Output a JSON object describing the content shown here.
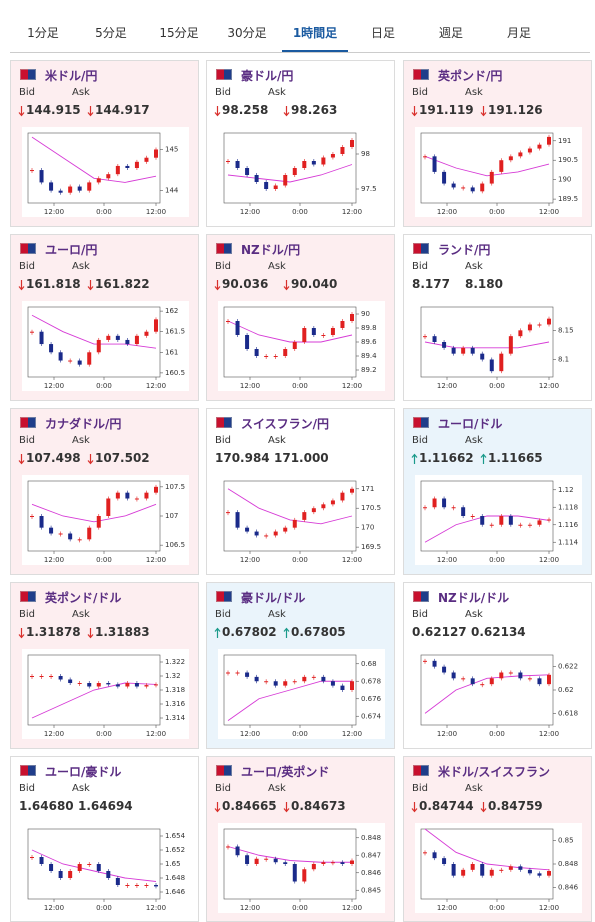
{
  "tabs": {
    "items": [
      "1分足",
      "5分足",
      "15分足",
      "30分足",
      "1時間足",
      "日足",
      "週足",
      "月足"
    ],
    "active": 4
  },
  "cards": [
    {
      "title": "米ドル/円",
      "bid_label": "Bid",
      "ask_label": "Ask",
      "bid": "144.915",
      "ask": "144.917",
      "direction": "down",
      "highlight": "pink",
      "chart": {
        "ylim": [
          143.7,
          145.4
        ],
        "yticks": [
          144,
          145
        ],
        "xticks": [
          "12:00",
          "0:00",
          "12:00"
        ],
        "closes": [
          144.5,
          144.2,
          144.0,
          143.95,
          144.1,
          144.0,
          144.2,
          144.3,
          144.4,
          144.6,
          144.55,
          144.7,
          144.8,
          145.0
        ],
        "ma": [
          145.3,
          144.8,
          144.3,
          144.2,
          144.35
        ]
      }
    },
    {
      "title": "豪ドル/円",
      "bid_label": "Bid",
      "ask_label": "Ask",
      "bid": "98.258",
      "ask": "98.263",
      "direction": "down",
      "highlight": "none",
      "chart": {
        "ylim": [
          97.3,
          98.3
        ],
        "yticks": [
          97.5,
          98
        ],
        "xticks": [
          "12:00",
          "0:00",
          "12:00"
        ],
        "closes": [
          97.9,
          97.8,
          97.7,
          97.6,
          97.5,
          97.55,
          97.7,
          97.8,
          97.9,
          97.85,
          97.95,
          98.0,
          98.1,
          98.2
        ],
        "ma": [
          97.7,
          97.65,
          97.6,
          97.7,
          97.85
        ]
      }
    },
    {
      "title": "英ポンド/円",
      "bid_label": "Bid",
      "ask_label": "Ask",
      "bid": "191.119",
      "ask": "191.126",
      "direction": "down",
      "highlight": "pink",
      "chart": {
        "ylim": [
          189.4,
          191.2
        ],
        "yticks": [
          189.5,
          190,
          190.5,
          191
        ],
        "xticks": [
          "12:00",
          "0:00",
          "12:00"
        ],
        "closes": [
          190.6,
          190.2,
          189.9,
          189.8,
          189.8,
          189.7,
          189.9,
          190.2,
          190.5,
          190.6,
          190.7,
          190.8,
          190.9,
          191.1
        ],
        "ma": [
          190.6,
          190.3,
          190.1,
          190.2,
          190.4
        ]
      }
    },
    {
      "title": "ユーロ/円",
      "bid_label": "Bid",
      "ask_label": "Ask",
      "bid": "161.818",
      "ask": "161.822",
      "direction": "down",
      "highlight": "pink",
      "chart": {
        "ylim": [
          160.4,
          162.1
        ],
        "yticks": [
          160.5,
          161,
          161.5,
          162
        ],
        "xticks": [
          "12:00",
          "0:00",
          "12:00"
        ],
        "closes": [
          161.5,
          161.2,
          161.0,
          160.8,
          160.8,
          160.7,
          161.0,
          161.3,
          161.4,
          161.3,
          161.2,
          161.4,
          161.5,
          161.8
        ],
        "ma": [
          161.9,
          161.5,
          161.2,
          161.2,
          161.1
        ]
      }
    },
    {
      "title": "NZドル/円",
      "bid_label": "Bid",
      "ask_label": "Ask",
      "bid": "90.036",
      "ask": "90.040",
      "direction": "down",
      "highlight": "pink",
      "chart": {
        "ylim": [
          89.1,
          90.1
        ],
        "yticks": [
          89.2,
          89.4,
          89.6,
          89.8,
          90
        ],
        "xticks": [
          "12:00",
          "0:00",
          "12:00"
        ],
        "closes": [
          89.9,
          89.7,
          89.5,
          89.4,
          89.4,
          89.4,
          89.5,
          89.6,
          89.8,
          89.7,
          89.7,
          89.8,
          89.9,
          90.0
        ],
        "ma": [
          89.9,
          89.7,
          89.6,
          89.6,
          89.7
        ]
      }
    },
    {
      "title": "ランド/円",
      "bid_label": "Bid",
      "ask_label": "Ask",
      "bid": "8.177",
      "ask": "8.180",
      "direction": "none",
      "highlight": "none",
      "chart": {
        "ylim": [
          8.07,
          8.19
        ],
        "yticks": [
          8.1,
          8.15
        ],
        "xticks": [
          "12:00",
          "0:00",
          "12:00"
        ],
        "closes": [
          8.14,
          8.13,
          8.12,
          8.11,
          8.12,
          8.11,
          8.1,
          8.08,
          8.11,
          8.14,
          8.15,
          8.16,
          8.16,
          8.17
        ],
        "ma": [
          8.13,
          8.12,
          8.12,
          8.12,
          8.13
        ]
      }
    },
    {
      "title": "カナダドル/円",
      "bid_label": "Bid",
      "ask_label": "Ask",
      "bid": "107.498",
      "ask": "107.502",
      "direction": "down",
      "highlight": "pink",
      "chart": {
        "ylim": [
          106.4,
          107.6
        ],
        "yticks": [
          106.5,
          107,
          107.5
        ],
        "xticks": [
          "12:00",
          "0:00",
          "12:00"
        ],
        "closes": [
          107.0,
          106.8,
          106.7,
          106.7,
          106.6,
          106.6,
          106.8,
          107.0,
          107.3,
          107.4,
          107.3,
          107.3,
          107.4,
          107.5
        ],
        "ma": [
          107.2,
          107.0,
          106.9,
          107.0,
          107.2
        ]
      }
    },
    {
      "title": "スイスフラン/円",
      "bid_label": "Bid",
      "ask_label": "Ask",
      "bid": "170.984",
      "ask": "171.000",
      "direction": "none",
      "highlight": "none",
      "chart": {
        "ylim": [
          169.4,
          171.2
        ],
        "yticks": [
          169.5,
          170,
          170.5,
          171
        ],
        "xticks": [
          "12:00",
          "0:00",
          "12:00"
        ],
        "closes": [
          170.4,
          170.0,
          169.9,
          169.8,
          169.8,
          169.9,
          170.0,
          170.2,
          170.4,
          170.5,
          170.6,
          170.7,
          170.9,
          171.0
        ],
        "ma": [
          171.0,
          170.5,
          170.2,
          170.1,
          170.3
        ]
      }
    },
    {
      "title": "ユーロ/ドル",
      "bid_label": "Bid",
      "ask_label": "Ask",
      "bid": "1.11662",
      "ask": "1.11665",
      "direction": "up",
      "highlight": "blue",
      "chart": {
        "ylim": [
          1.113,
          1.121
        ],
        "yticks": [
          1.114,
          1.116,
          1.118,
          1.12
        ],
        "xticks": [
          "12:00",
          "0:00",
          "12:00"
        ],
        "closes": [
          1.118,
          1.119,
          1.118,
          1.118,
          1.117,
          1.117,
          1.116,
          1.116,
          1.117,
          1.116,
          1.116,
          1.116,
          1.1165,
          1.1166
        ],
        "ma": [
          1.114,
          1.116,
          1.117,
          1.117,
          1.1165
        ]
      }
    },
    {
      "title": "英ポンド/ドル",
      "bid_label": "Bid",
      "ask_label": "Ask",
      "bid": "1.31878",
      "ask": "1.31883",
      "direction": "down",
      "highlight": "pink",
      "chart": {
        "ylim": [
          1.313,
          1.323
        ],
        "yticks": [
          1.314,
          1.316,
          1.318,
          1.32,
          1.322
        ],
        "xticks": [
          "12:00",
          "0:00",
          "12:00"
        ],
        "closes": [
          1.32,
          1.32,
          1.32,
          1.3195,
          1.319,
          1.319,
          1.3185,
          1.319,
          1.3188,
          1.3185,
          1.319,
          1.3185,
          1.3187,
          1.3188
        ],
        "ma": [
          1.314,
          1.316,
          1.318,
          1.319,
          1.3188
        ]
      }
    },
    {
      "title": "豪ドル/ドル",
      "bid_label": "Bid",
      "ask_label": "Ask",
      "bid": "0.67802",
      "ask": "0.67805",
      "direction": "up",
      "highlight": "blue",
      "chart": {
        "ylim": [
          0.673,
          0.681
        ],
        "yticks": [
          0.674,
          0.676,
          0.678,
          0.68
        ],
        "xticks": [
          "12:00",
          "0:00",
          "12:00"
        ],
        "closes": [
          0.679,
          0.679,
          0.6785,
          0.678,
          0.678,
          0.6775,
          0.678,
          0.678,
          0.6785,
          0.6785,
          0.678,
          0.6775,
          0.677,
          0.678
        ],
        "ma": [
          0.6735,
          0.676,
          0.677,
          0.678,
          0.678
        ]
      }
    },
    {
      "title": "NZドル/ドル",
      "bid_label": "Bid",
      "ask_label": "Ask",
      "bid": "0.62127",
      "ask": "0.62134",
      "direction": "none",
      "highlight": "none",
      "chart": {
        "ylim": [
          0.617,
          0.623
        ],
        "yticks": [
          0.618,
          0.62,
          0.622
        ],
        "xticks": [
          "12:00",
          "0:00",
          "12:00"
        ],
        "closes": [
          0.6225,
          0.622,
          0.6215,
          0.621,
          0.621,
          0.6205,
          0.6205,
          0.621,
          0.6215,
          0.6215,
          0.621,
          0.621,
          0.6205,
          0.6213
        ],
        "ma": [
          0.618,
          0.62,
          0.621,
          0.6212,
          0.6213
        ]
      }
    },
    {
      "title": "ユーロ/豪ドル",
      "bid_label": "Bid",
      "ask_label": "Ask",
      "bid": "1.64680",
      "ask": "1.64694",
      "direction": "none",
      "highlight": "none",
      "chart": {
        "ylim": [
          1.645,
          1.655
        ],
        "yticks": [
          1.646,
          1.648,
          1.65,
          1.652,
          1.654
        ],
        "xticks": [
          "12:00",
          "0:00",
          "12:00"
        ],
        "closes": [
          1.651,
          1.65,
          1.649,
          1.648,
          1.649,
          1.65,
          1.65,
          1.649,
          1.648,
          1.647,
          1.647,
          1.647,
          1.647,
          1.6468
        ],
        "ma": [
          1.652,
          1.65,
          1.649,
          1.648,
          1.6475
        ]
      }
    },
    {
      "title": "ユーロ/英ポンド",
      "bid_label": "Bid",
      "ask_label": "Ask",
      "bid": "0.84665",
      "ask": "0.84673",
      "direction": "down",
      "highlight": "pink",
      "chart": {
        "ylim": [
          0.8445,
          0.8485
        ],
        "yticks": [
          0.845,
          0.846,
          0.847,
          0.848
        ],
        "xticks": [
          "12:00",
          "0:00",
          "12:00"
        ],
        "closes": [
          0.8475,
          0.847,
          0.8465,
          0.8468,
          0.8468,
          0.8466,
          0.8465,
          0.8455,
          0.8462,
          0.8465,
          0.8466,
          0.8466,
          0.8465,
          0.8467
        ],
        "ma": [
          0.8475,
          0.847,
          0.8467,
          0.8466,
          0.8466
        ]
      }
    },
    {
      "title": "米ドル/スイスフラン",
      "bid_label": "Bid",
      "ask_label": "Ask",
      "bid": "0.84744",
      "ask": "0.84759",
      "direction": "down",
      "highlight": "pink",
      "chart": {
        "ylim": [
          0.845,
          0.851
        ],
        "yticks": [
          0.846,
          0.848,
          0.85
        ],
        "xticks": [
          "12:00",
          "0:00",
          "12:00"
        ],
        "closes": [
          0.849,
          0.8485,
          0.848,
          0.847,
          0.8475,
          0.848,
          0.847,
          0.8475,
          0.8475,
          0.8478,
          0.8475,
          0.8472,
          0.847,
          0.8474
        ],
        "ma": [
          0.851,
          0.849,
          0.848,
          0.8477,
          0.8475
        ]
      }
    }
  ]
}
